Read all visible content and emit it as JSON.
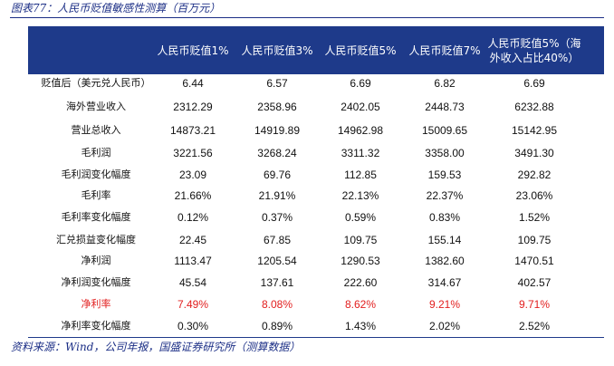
{
  "figure_title": "图表77：人民币贬值敏感性测算（百万元）",
  "source_note": "资料来源：Wind，公司年报，国盛证券研究所（测算数据）",
  "table": {
    "headers": [
      "人民币贬值1%",
      "人民币贬值3%",
      "人民币贬值5%",
      "人民币贬值7%",
      "人民币贬值5%（海外收入占比40%）"
    ],
    "rows": [
      {
        "label": "贬值后（美元兑人民币）",
        "values": [
          "6.44",
          "6.57",
          "6.69",
          "6.82",
          "6.69"
        ],
        "highlight": false
      },
      {
        "label": "海外营业收入",
        "values": [
          "2312.29",
          "2358.96",
          "2402.05",
          "2448.73",
          "6232.88"
        ],
        "highlight": false
      },
      {
        "label": "营业总收入",
        "values": [
          "14873.21",
          "14919.89",
          "14962.98",
          "15009.65",
          "15142.95"
        ],
        "highlight": false
      },
      {
        "label": "毛利润",
        "values": [
          "3221.56",
          "3268.24",
          "3311.32",
          "3358.00",
          "3491.30"
        ],
        "highlight": false
      },
      {
        "label": "毛利润变化幅度",
        "values": [
          "23.09",
          "69.76",
          "112.85",
          "159.53",
          "292.82"
        ],
        "highlight": false
      },
      {
        "label": "毛利率",
        "values": [
          "21.66%",
          "21.91%",
          "22.13%",
          "22.37%",
          "23.06%"
        ],
        "highlight": false
      },
      {
        "label": "毛利率变化幅度",
        "values": [
          "0.12%",
          "0.37%",
          "0.59%",
          "0.83%",
          "1.52%"
        ],
        "highlight": false
      },
      {
        "label": "汇兑损益变化幅度",
        "values": [
          "22.45",
          "67.85",
          "109.75",
          "155.14",
          "109.75"
        ],
        "highlight": false
      },
      {
        "label": "净利润",
        "values": [
          "1113.47",
          "1205.54",
          "1290.53",
          "1382.60",
          "1470.51"
        ],
        "highlight": false
      },
      {
        "label": "净利润变化幅度",
        "values": [
          "45.54",
          "137.61",
          "222.60",
          "314.67",
          "402.57"
        ],
        "highlight": false
      },
      {
        "label": "净利率",
        "values": [
          "7.49%",
          "8.08%",
          "8.62%",
          "9.21%",
          "9.71%"
        ],
        "highlight": true
      },
      {
        "label": "净利率变化幅度",
        "values": [
          "0.30%",
          "0.89%",
          "1.43%",
          "2.02%",
          "2.52%"
        ],
        "highlight": false
      }
    ]
  },
  "colors": {
    "header_bg": "#1e3a8a",
    "title_text": "#1c2f86",
    "highlight_text": "#e21e1e"
  }
}
